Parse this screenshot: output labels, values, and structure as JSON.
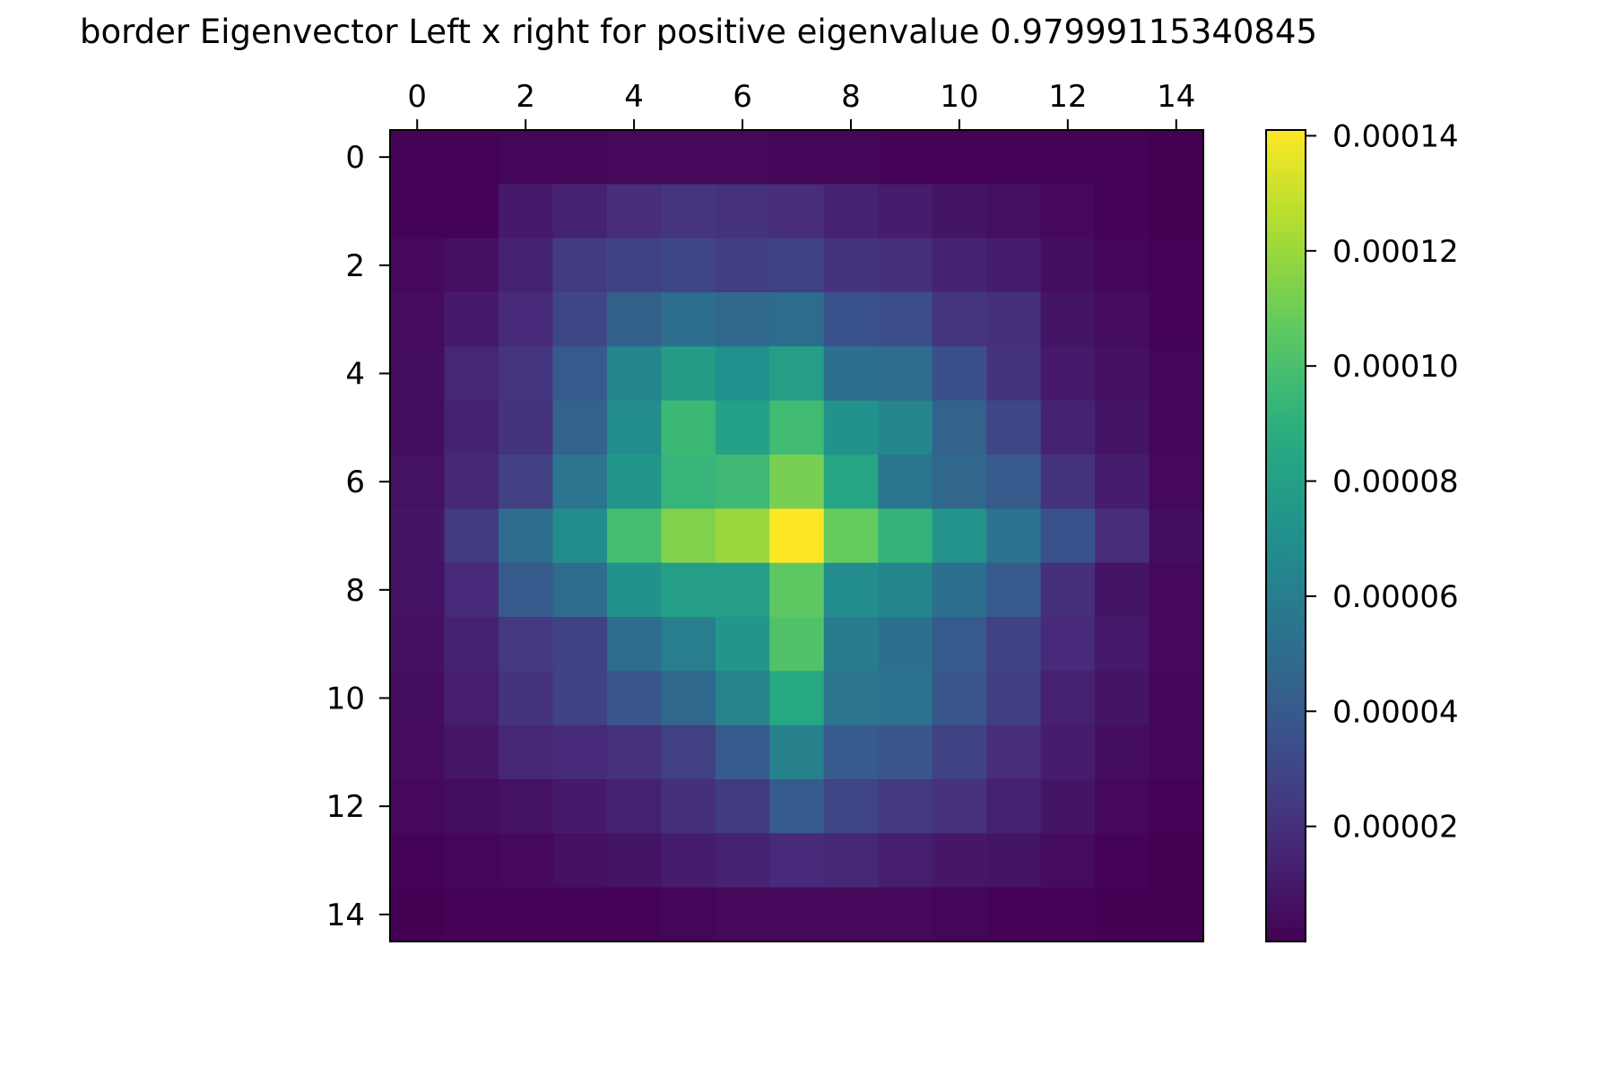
{
  "chart_data": {
    "type": "heatmap",
    "title": "border Eigenvector Left x right for positive eigenvalue 0.97999115340845",
    "xlabel": "",
    "ylabel": "",
    "x_ticks": [
      "0",
      "2",
      "4",
      "6",
      "8",
      "10",
      "12",
      "14"
    ],
    "y_ticks": [
      "0",
      "2",
      "4",
      "6",
      "8",
      "10",
      "12",
      "14"
    ],
    "x_tick_values": [
      0,
      2,
      4,
      6,
      8,
      10,
      12,
      14
    ],
    "y_tick_values": [
      0,
      2,
      4,
      6,
      8,
      10,
      12,
      14
    ],
    "xlim": [
      -0.5,
      14.5
    ],
    "ylim": [
      14.5,
      -0.5
    ],
    "x_axis_position": "top",
    "grid": false,
    "colormap": "viridis",
    "colorbar": {
      "placement": "right",
      "vmin": 0.0,
      "vmax": 0.000141,
      "ticks": [
        "0.00002",
        "0.00004",
        "0.00006",
        "0.00008",
        "0.00010",
        "0.00012",
        "0.00014"
      ],
      "tick_values": [
        2e-05,
        4e-05,
        6e-05,
        8e-05,
        0.0001,
        0.00012,
        0.00014
      ]
    },
    "values": [
      [
        1e-06,
        1e-06,
        2e-06,
        2e-06,
        3e-06,
        3e-06,
        3e-06,
        2e-06,
        2e-06,
        1e-06,
        1e-06,
        1e-06,
        1e-06,
        1e-06,
        0.0
      ],
      [
        1e-06,
        1e-06,
        1e-05,
        1.4e-05,
        1.8e-05,
        2.2e-05,
        2e-05,
        1.8e-05,
        1.4e-05,
        1.1e-05,
        8e-06,
        6e-06,
        3e-06,
        1e-06,
        0.0
      ],
      [
        3e-06,
        6e-06,
        1.4e-05,
        2.5e-05,
        2.8e-05,
        3e-05,
        2.6e-05,
        2.8e-05,
        2.1e-05,
        1.9e-05,
        1.4e-05,
        1.1e-05,
        5e-06,
        2e-06,
        1e-06
      ],
      [
        4e-06,
        1e-05,
        1.7e-05,
        3e-05,
        4.4e-05,
        5.1e-05,
        4.8e-05,
        5e-05,
        3.6e-05,
        3.4e-05,
        2.2e-05,
        1.9e-05,
        8e-06,
        4e-06,
        1e-06
      ],
      [
        5e-06,
        1.5e-05,
        2.2e-05,
        4e-05,
        6.5e-05,
        7.8e-05,
        7.1e-05,
        7.9e-05,
        5.2e-05,
        5e-05,
        3.5e-05,
        2.1e-05,
        1e-05,
        6e-06,
        2e-06
      ],
      [
        5e-06,
        1.4e-05,
        2.1e-05,
        4.5e-05,
        6.8e-05,
        9.5e-05,
        8e-05,
        9.7e-05,
        7.2e-05,
        6.4e-05,
        4.5e-05,
        3e-05,
        1.4e-05,
        8e-06,
        2e-06
      ],
      [
        7e-06,
        1.6e-05,
        2.7e-05,
        5.5e-05,
        7.4e-05,
        9.3e-05,
        9.6e-05,
        0.000112,
        8.3e-05,
        5.6e-05,
        4.7e-05,
        4e-05,
        2.1e-05,
        1.1e-05,
        3e-06
      ],
      [
        8e-06,
        2.5e-05,
        5e-05,
        6.8e-05,
        9.8e-05,
        0.000114,
        0.00012,
        0.000141,
        0.000108,
        9.2e-05,
        7.3e-05,
        5.4e-05,
        3.6e-05,
        1.8e-05,
        5e-06
      ],
      [
        7e-06,
        1.7e-05,
        4e-05,
        5e-05,
        7.2e-05,
        7.9e-05,
        7.9e-05,
        0.000106,
        6.8e-05,
        6.4e-05,
        5.2e-05,
        4e-05,
        1.9e-05,
        8e-06,
        3e-06
      ],
      [
        6e-06,
        1.3e-05,
        2.4e-05,
        2.8e-05,
        5e-05,
        6e-05,
        7.4e-05,
        0.000102,
        5.9e-05,
        5.2e-05,
        4e-05,
        2.8e-05,
        1.7e-05,
        1e-05,
        3e-06
      ],
      [
        5e-06,
        1.2e-05,
        2.1e-05,
        2.8e-05,
        3.8e-05,
        4.8e-05,
        6.3e-05,
        8.5e-05,
        5.5e-05,
        5.4e-05,
        3.8e-05,
        2.6e-05,
        1.3e-05,
        8e-06,
        2e-06
      ],
      [
        4e-06,
        9e-06,
        1.5e-05,
        1.7e-05,
        2e-05,
        2.7e-05,
        4.1e-05,
        6.2e-05,
        4.1e-05,
        3.8e-05,
        2.8e-05,
        1.8e-05,
        1.1e-05,
        5e-06,
        2e-06
      ],
      [
        3e-06,
        5e-06,
        7e-06,
        1e-05,
        1.3e-05,
        1.9e-05,
        2.5e-05,
        4.1e-05,
        2.9e-05,
        2.4e-05,
        2e-05,
        1.3e-05,
        8e-06,
        3e-06,
        1e-06
      ],
      [
        1e-06,
        2e-06,
        3e-06,
        6e-06,
        8e-06,
        1.1e-05,
        1.4e-05,
        1.7e-05,
        1.6e-05,
        1.2e-05,
        9e-06,
        8e-06,
        4e-06,
        1e-06,
        0.0
      ],
      [
        0.0,
        1e-06,
        1e-06,
        1e-06,
        1e-06,
        2e-06,
        3e-06,
        3e-06,
        3e-06,
        3e-06,
        2e-06,
        1e-06,
        1e-06,
        0.0,
        0.0
      ]
    ]
  }
}
